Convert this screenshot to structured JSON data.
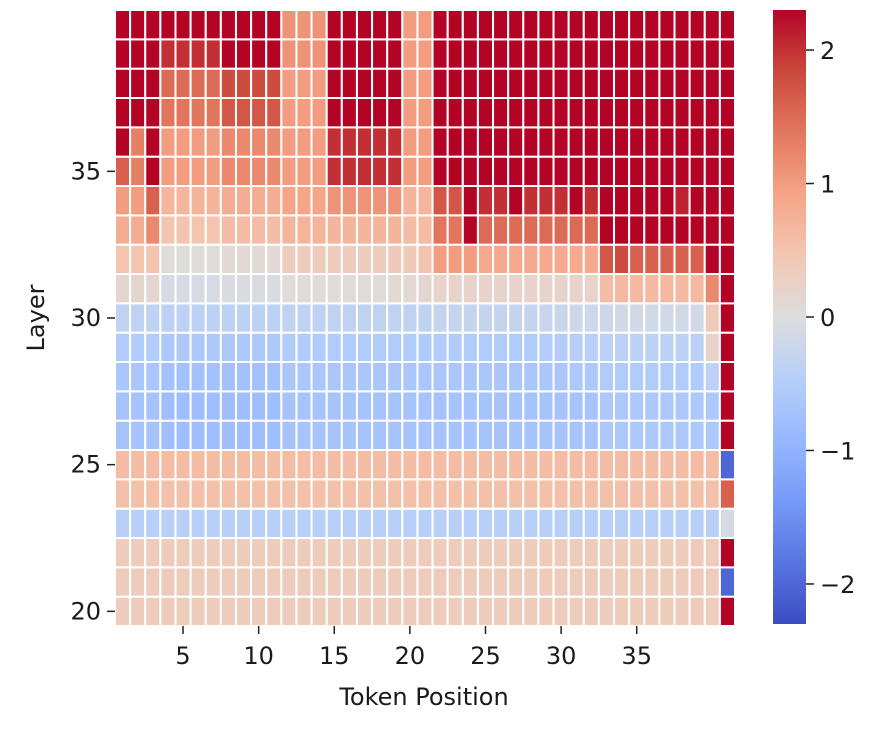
{
  "chart_data": {
    "type": "heatmap",
    "xlabel": "Token Position",
    "ylabel": "Layer",
    "x_range": [
      1,
      39
    ],
    "y_range": [
      20,
      40
    ],
    "x_ticks": [
      5,
      10,
      15,
      20,
      25,
      30,
      35
    ],
    "y_ticks": [
      20,
      25,
      30,
      35
    ],
    "colorbar": {
      "colormap": "coolwarm",
      "vmin": -2.3,
      "vmax": 2.3,
      "ticks": [
        -2,
        -1,
        0,
        1,
        2
      ],
      "tick_labels": [
        "−2",
        "−1",
        "0",
        "1",
        "2"
      ]
    },
    "cell_separator_color": "#ffffff",
    "layers": [
      20,
      21,
      22,
      23,
      24,
      25,
      26,
      27,
      28,
      29,
      30,
      31,
      32,
      33,
      34,
      35,
      36,
      37,
      38,
      39,
      40
    ],
    "values": [
      [
        0.35,
        0.35,
        0.35,
        0.35,
        0.35,
        0.35,
        0.35,
        0.35,
        0.35,
        0.35,
        0.35,
        0.35,
        0.35,
        0.35,
        0.35,
        0.35,
        0.35,
        0.35,
        0.35,
        0.35,
        0.35,
        0.35,
        0.35,
        0.35,
        0.35,
        0.35,
        0.35,
        0.35,
        0.35,
        0.35,
        0.35,
        0.35,
        0.35,
        0.35,
        0.35,
        0.35,
        0.35,
        0.35,
        0.35,
        0.35,
        2.3
      ],
      [
        0.35,
        0.35,
        0.35,
        0.35,
        0.35,
        0.35,
        0.35,
        0.35,
        0.35,
        0.35,
        0.35,
        0.35,
        0.35,
        0.35,
        0.35,
        0.35,
        0.35,
        0.35,
        0.35,
        0.35,
        0.35,
        0.35,
        0.35,
        0.35,
        0.35,
        0.35,
        0.35,
        0.35,
        0.35,
        0.35,
        0.35,
        0.35,
        0.35,
        0.35,
        0.35,
        0.35,
        0.35,
        0.35,
        0.35,
        0.35,
        -2.0
      ],
      [
        0.35,
        0.35,
        0.35,
        0.35,
        0.35,
        0.35,
        0.35,
        0.35,
        0.35,
        0.35,
        0.35,
        0.35,
        0.35,
        0.35,
        0.35,
        0.35,
        0.35,
        0.35,
        0.35,
        0.35,
        0.35,
        0.35,
        0.35,
        0.35,
        0.35,
        0.35,
        0.35,
        0.35,
        0.35,
        0.35,
        0.35,
        0.35,
        0.35,
        0.35,
        0.35,
        0.35,
        0.35,
        0.35,
        0.35,
        0.35,
        2.3
      ],
      [
        -0.45,
        -0.45,
        -0.45,
        -0.45,
        -0.45,
        -0.45,
        -0.45,
        -0.45,
        -0.45,
        -0.45,
        -0.45,
        -0.45,
        -0.45,
        -0.45,
        -0.45,
        -0.45,
        -0.45,
        -0.45,
        -0.45,
        -0.45,
        -0.45,
        -0.45,
        -0.45,
        -0.45,
        -0.45,
        -0.45,
        -0.45,
        -0.45,
        -0.45,
        -0.45,
        -0.45,
        -0.45,
        -0.45,
        -0.45,
        -0.45,
        -0.45,
        -0.45,
        -0.45,
        -0.45,
        -0.45,
        -0.1
      ],
      [
        0.55,
        0.55,
        0.55,
        0.55,
        0.55,
        0.55,
        0.55,
        0.55,
        0.55,
        0.55,
        0.55,
        0.55,
        0.55,
        0.55,
        0.55,
        0.55,
        0.55,
        0.55,
        0.55,
        0.55,
        0.55,
        0.55,
        0.55,
        0.55,
        0.55,
        0.55,
        0.55,
        0.55,
        0.55,
        0.55,
        0.55,
        0.55,
        0.55,
        0.55,
        0.55,
        0.55,
        0.55,
        0.55,
        0.55,
        0.55,
        1.6
      ],
      [
        0.6,
        0.6,
        0.6,
        0.6,
        0.6,
        0.6,
        0.6,
        0.6,
        0.6,
        0.6,
        0.6,
        0.6,
        0.6,
        0.6,
        0.6,
        0.6,
        0.6,
        0.6,
        0.6,
        0.6,
        0.6,
        0.6,
        0.6,
        0.6,
        0.6,
        0.6,
        0.6,
        0.6,
        0.6,
        0.6,
        0.6,
        0.6,
        0.6,
        0.6,
        0.6,
        0.6,
        0.6,
        0.6,
        0.6,
        0.6,
        -2.0
      ],
      [
        -0.7,
        -0.7,
        -0.7,
        -0.8,
        -0.8,
        -0.8,
        -0.8,
        -0.8,
        -0.8,
        -0.8,
        -0.8,
        -0.7,
        -0.7,
        -0.7,
        -0.7,
        -0.7,
        -0.7,
        -0.7,
        -0.7,
        -0.7,
        -0.7,
        -0.7,
        -0.7,
        -0.7,
        -0.7,
        -0.7,
        -0.7,
        -0.7,
        -0.7,
        -0.7,
        -0.7,
        -0.7,
        -0.6,
        -0.6,
        -0.6,
        -0.6,
        -0.6,
        -0.6,
        -0.6,
        -0.6,
        2.3
      ],
      [
        -0.7,
        -0.7,
        -0.7,
        -0.8,
        -0.8,
        -0.8,
        -0.8,
        -0.8,
        -0.8,
        -0.8,
        -0.8,
        -0.7,
        -0.7,
        -0.7,
        -0.7,
        -0.7,
        -0.7,
        -0.7,
        -0.7,
        -0.7,
        -0.7,
        -0.7,
        -0.7,
        -0.7,
        -0.7,
        -0.7,
        -0.7,
        -0.7,
        -0.7,
        -0.7,
        -0.7,
        -0.7,
        -0.6,
        -0.6,
        -0.6,
        -0.6,
        -0.6,
        -0.6,
        -0.6,
        -0.6,
        2.3
      ],
      [
        -0.65,
        -0.65,
        -0.65,
        -0.75,
        -0.75,
        -0.75,
        -0.75,
        -0.75,
        -0.75,
        -0.75,
        -0.75,
        -0.65,
        -0.65,
        -0.65,
        -0.65,
        -0.65,
        -0.65,
        -0.65,
        -0.65,
        -0.65,
        -0.65,
        -0.65,
        -0.65,
        -0.65,
        -0.65,
        -0.65,
        -0.65,
        -0.65,
        -0.65,
        -0.65,
        -0.6,
        -0.6,
        -0.55,
        -0.55,
        -0.55,
        -0.55,
        -0.55,
        -0.55,
        -0.55,
        -0.4,
        2.3
      ],
      [
        -0.55,
        -0.55,
        -0.55,
        -0.6,
        -0.6,
        -0.6,
        -0.6,
        -0.6,
        -0.6,
        -0.6,
        -0.6,
        -0.55,
        -0.55,
        -0.55,
        -0.55,
        -0.55,
        -0.55,
        -0.55,
        -0.55,
        -0.55,
        -0.55,
        -0.55,
        -0.55,
        -0.55,
        -0.55,
        -0.55,
        -0.55,
        -0.55,
        -0.5,
        -0.5,
        -0.45,
        -0.45,
        -0.4,
        -0.4,
        -0.4,
        -0.4,
        -0.4,
        -0.4,
        -0.4,
        0.2,
        2.3
      ],
      [
        -0.35,
        -0.35,
        -0.35,
        -0.4,
        -0.4,
        -0.4,
        -0.4,
        -0.4,
        -0.4,
        -0.4,
        -0.4,
        -0.35,
        -0.35,
        -0.35,
        -0.35,
        -0.35,
        -0.35,
        -0.35,
        -0.35,
        -0.35,
        -0.35,
        -0.3,
        -0.3,
        -0.3,
        -0.3,
        -0.3,
        -0.3,
        -0.3,
        -0.25,
        -0.25,
        -0.2,
        -0.2,
        -0.2,
        -0.15,
        -0.15,
        -0.15,
        -0.15,
        -0.15,
        -0.15,
        0.4,
        2.3
      ],
      [
        0.15,
        0.15,
        0.15,
        -0.1,
        -0.1,
        -0.1,
        -0.1,
        -0.05,
        -0.05,
        -0.05,
        -0.05,
        0.05,
        0.05,
        0.05,
        0.05,
        0.05,
        0.05,
        0.05,
        0.1,
        0.1,
        0.15,
        0.2,
        0.2,
        0.2,
        0.2,
        0.2,
        0.2,
        0.2,
        0.2,
        0.2,
        0.2,
        0.2,
        0.6,
        0.65,
        0.65,
        0.65,
        0.65,
        0.65,
        0.65,
        1.2,
        2.3
      ],
      [
        0.5,
        0.5,
        0.5,
        0.05,
        0.05,
        0.05,
        0.05,
        0.1,
        0.1,
        0.1,
        0.1,
        0.35,
        0.35,
        0.35,
        0.35,
        0.35,
        0.35,
        0.35,
        0.4,
        0.4,
        0.5,
        1.0,
        1.0,
        1.0,
        0.85,
        0.85,
        0.85,
        0.85,
        0.85,
        0.85,
        0.85,
        0.85,
        1.7,
        1.8,
        1.6,
        1.6,
        1.6,
        1.6,
        1.6,
        2.3,
        2.3
      ],
      [
        0.8,
        0.8,
        1.2,
        0.5,
        0.5,
        0.5,
        0.5,
        0.6,
        0.6,
        0.6,
        0.6,
        0.7,
        0.7,
        0.7,
        0.7,
        0.7,
        0.7,
        0.7,
        0.7,
        0.6,
        0.6,
        1.4,
        1.4,
        2.3,
        1.5,
        1.5,
        1.5,
        1.5,
        1.5,
        1.5,
        1.5,
        1.5,
        2.3,
        2.3,
        2.3,
        2.3,
        2.3,
        2.3,
        2.3,
        2.3,
        2.3
      ],
      [
        1.0,
        1.0,
        1.6,
        0.7,
        0.7,
        0.7,
        0.7,
        0.8,
        0.8,
        0.8,
        0.8,
        0.9,
        0.9,
        0.9,
        1.1,
        1.1,
        1.1,
        1.1,
        1.1,
        0.7,
        0.7,
        1.7,
        1.7,
        2.3,
        2.0,
        2.0,
        2.3,
        2.0,
        2.0,
        2.0,
        2.3,
        2.0,
        2.3,
        2.3,
        2.3,
        2.3,
        2.3,
        2.1,
        2.3,
        2.3,
        2.3
      ],
      [
        1.6,
        1.3,
        2.3,
        1.0,
        1.0,
        1.0,
        1.0,
        1.2,
        1.2,
        1.2,
        1.2,
        1.0,
        1.0,
        1.0,
        2.0,
        2.0,
        2.0,
        2.0,
        2.0,
        1.0,
        1.0,
        2.3,
        2.3,
        2.3,
        2.3,
        2.3,
        2.3,
        2.3,
        2.3,
        2.3,
        2.3,
        2.3,
        2.3,
        2.3,
        2.3,
        2.3,
        2.3,
        2.3,
        2.3,
        2.3,
        2.3
      ],
      [
        2.3,
        1.3,
        2.3,
        1.0,
        1.0,
        1.0,
        1.0,
        1.2,
        1.2,
        1.2,
        1.2,
        1.0,
        1.0,
        1.0,
        2.0,
        2.0,
        2.0,
        2.0,
        2.0,
        1.0,
        1.0,
        2.3,
        2.3,
        2.3,
        2.3,
        2.3,
        2.3,
        2.3,
        2.3,
        2.3,
        2.3,
        2.3,
        2.3,
        2.3,
        2.3,
        2.3,
        2.3,
        2.3,
        2.3,
        2.3,
        2.3
      ],
      [
        2.3,
        2.3,
        2.3,
        1.4,
        1.4,
        1.4,
        1.4,
        1.7,
        1.7,
        1.7,
        1.7,
        1.0,
        1.0,
        1.0,
        2.3,
        2.3,
        2.3,
        2.3,
        2.3,
        1.0,
        1.0,
        2.3,
        2.3,
        2.3,
        2.3,
        2.3,
        2.3,
        2.3,
        2.3,
        2.3,
        2.3,
        2.3,
        2.3,
        2.3,
        2.3,
        2.3,
        2.3,
        2.3,
        2.3,
        2.3,
        2.3
      ],
      [
        2.3,
        2.3,
        2.3,
        1.5,
        1.5,
        1.5,
        1.5,
        1.8,
        1.8,
        1.8,
        1.8,
        1.0,
        1.0,
        1.0,
        2.3,
        2.3,
        2.3,
        2.3,
        2.3,
        1.0,
        1.0,
        2.3,
        2.3,
        2.3,
        2.3,
        2.3,
        2.3,
        2.3,
        2.3,
        2.3,
        2.3,
        2.3,
        2.3,
        2.3,
        2.3,
        2.3,
        2.3,
        2.3,
        2.3,
        2.3,
        2.3
      ],
      [
        2.3,
        2.3,
        2.3,
        2.0,
        2.0,
        2.0,
        2.0,
        2.3,
        2.3,
        2.3,
        2.3,
        1.1,
        1.1,
        1.1,
        2.3,
        2.3,
        2.3,
        2.3,
        2.3,
        1.0,
        1.0,
        2.3,
        2.3,
        2.3,
        2.3,
        2.3,
        2.3,
        2.3,
        2.3,
        2.3,
        2.3,
        2.3,
        2.3,
        2.3,
        2.3,
        2.3,
        2.3,
        2.3,
        2.3,
        2.3,
        2.3
      ],
      [
        2.3,
        2.3,
        2.3,
        2.3,
        2.3,
        2.3,
        2.3,
        2.3,
        2.3,
        2.3,
        2.3,
        1.1,
        1.1,
        1.1,
        2.3,
        2.3,
        2.3,
        2.3,
        2.3,
        1.0,
        1.0,
        2.3,
        2.3,
        2.3,
        2.3,
        2.3,
        2.3,
        2.3,
        2.3,
        2.3,
        2.3,
        2.3,
        2.3,
        2.3,
        2.3,
        2.3,
        2.3,
        2.3,
        2.3,
        2.3,
        2.3
      ]
    ]
  }
}
